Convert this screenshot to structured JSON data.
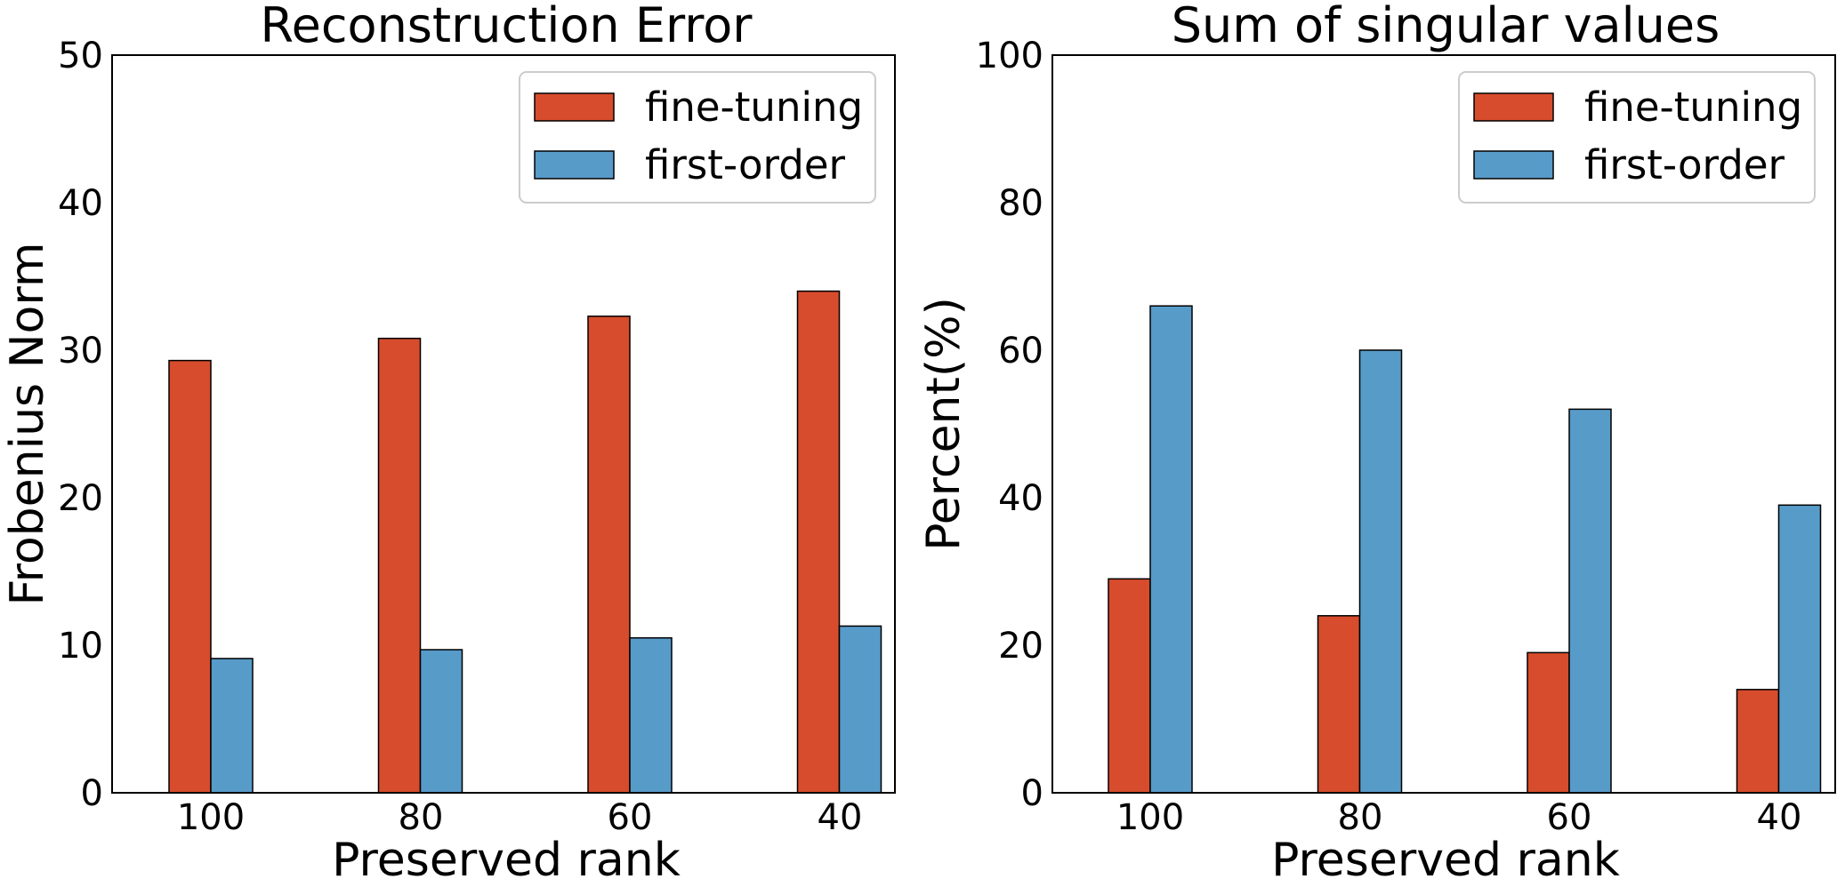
{
  "chart_data": [
    {
      "type": "bar",
      "title": "Reconstruction Error",
      "xlabel": "Preserved rank",
      "ylabel": "Frobenius Norm",
      "categories": [
        "100",
        "80",
        "60",
        "40"
      ],
      "series": [
        {
          "name": "fine-tuning",
          "color": "#d64c2c",
          "values": [
            29.3,
            30.8,
            32.3,
            34.0
          ]
        },
        {
          "name": "first-order",
          "color": "#579bc9",
          "values": [
            9.1,
            9.7,
            10.5,
            11.3
          ]
        }
      ],
      "ylim": [
        0,
        50
      ],
      "yticks": [
        "0",
        "10",
        "20",
        "30",
        "40",
        "50"
      ],
      "grid": false,
      "legend": "top-right"
    },
    {
      "type": "bar",
      "title": "Sum of singular values",
      "xlabel": "Preserved rank",
      "ylabel": "Percent(%)",
      "categories": [
        "100",
        "80",
        "60",
        "40"
      ],
      "series": [
        {
          "name": "fine-tuning",
          "color": "#d64c2c",
          "values": [
            29,
            24,
            19,
            14
          ]
        },
        {
          "name": "first-order",
          "color": "#579bc9",
          "values": [
            66,
            60,
            52,
            39
          ]
        }
      ],
      "ylim": [
        0,
        100
      ],
      "yticks": [
        "0",
        "20",
        "40",
        "60",
        "80",
        "100"
      ],
      "grid": false,
      "legend": "top-right"
    }
  ]
}
